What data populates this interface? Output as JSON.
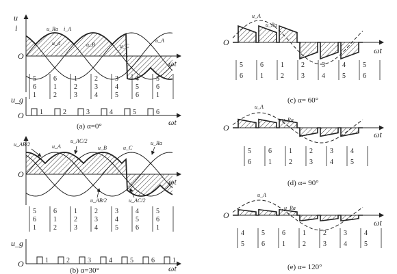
{
  "figure": {
    "colors": {
      "ink": "#222222",
      "hatch": "#333333",
      "background": "#ffffff"
    },
    "panels": [
      {
        "id": "a",
        "caption": "(a) α=0°",
        "axis_labels": {
          "y_top": "u",
          "y_second": "i",
          "origin": "O",
          "x": "ωt"
        },
        "curve_labels": [
          "u_Ra",
          "i_A",
          "u_d",
          "u_B",
          "u_C",
          "u_A"
        ],
        "thyristor_rows": [
          [
            "5",
            "6",
            "1",
            "2",
            "3",
            "4",
            "5"
          ],
          [
            "6",
            "1",
            "2",
            "3",
            "4",
            "5",
            "6"
          ],
          [
            "1",
            "2",
            "3",
            "4",
            "5",
            "6",
            "1"
          ]
        ],
        "gate_labels": {
          "y": "u_g",
          "origin": "O",
          "x": "ωt"
        },
        "gate_pulses": [
          "1",
          "2",
          "3",
          "4",
          "5",
          "6"
        ]
      },
      {
        "id": "b",
        "caption": "(b) α=30°",
        "axis_labels": {
          "origin": "O",
          "x": "ωt"
        },
        "curve_labels": [
          "u_AB/2",
          "u_A",
          "u_AC/2",
          "u_B",
          "u_C",
          "u_Ra",
          "u_AB/2",
          "u_AC/2"
        ],
        "thyristor_rows": [
          [
            "5",
            "6",
            "1",
            "2",
            "3",
            "4",
            "5"
          ],
          [
            "6",
            "1",
            "2",
            "3",
            "4",
            "5",
            "6"
          ],
          [
            "1",
            "2",
            "3",
            "4",
            "5",
            "6",
            "1"
          ]
        ],
        "gate_labels": {
          "y": "u_g",
          "origin": "O",
          "x": "ωt"
        },
        "gate_pulses": [
          "1",
          "2",
          "3",
          "4",
          "5",
          "6",
          "1"
        ]
      },
      {
        "id": "c",
        "caption": "(c) α= 60°",
        "axis_labels": {
          "origin": "O",
          "x": "ωt"
        },
        "curve_labels": [
          "u_A",
          "u_Ra"
        ],
        "thyristor_rows": [
          [
            "5",
            "6",
            "1",
            "2",
            "3",
            "4",
            "5"
          ],
          [
            "6",
            "1",
            "2",
            "3",
            "4",
            "5",
            "6"
          ]
        ]
      },
      {
        "id": "d",
        "caption": "(d) α= 90°",
        "axis_labels": {
          "origin": "O",
          "x": "ωt"
        },
        "curve_labels": [
          "u_A",
          "u_Ra"
        ],
        "thyristor_rows": [
          [
            "5",
            "6",
            "1",
            "2",
            "3",
            "4"
          ],
          [
            "6",
            "1",
            "2",
            "3",
            "4",
            "5"
          ]
        ]
      },
      {
        "id": "e",
        "caption": "(e) α= 120°",
        "axis_labels": {
          "origin": "O",
          "x": "ωt"
        },
        "curve_labels": [
          "u_A",
          "u_Ra"
        ],
        "thyristor_rows": [
          [
            "4",
            "5",
            "6",
            "1",
            "2",
            "3",
            "4"
          ],
          [
            "5",
            "6",
            "1",
            "2",
            "3",
            "4",
            "5"
          ]
        ]
      }
    ]
  }
}
